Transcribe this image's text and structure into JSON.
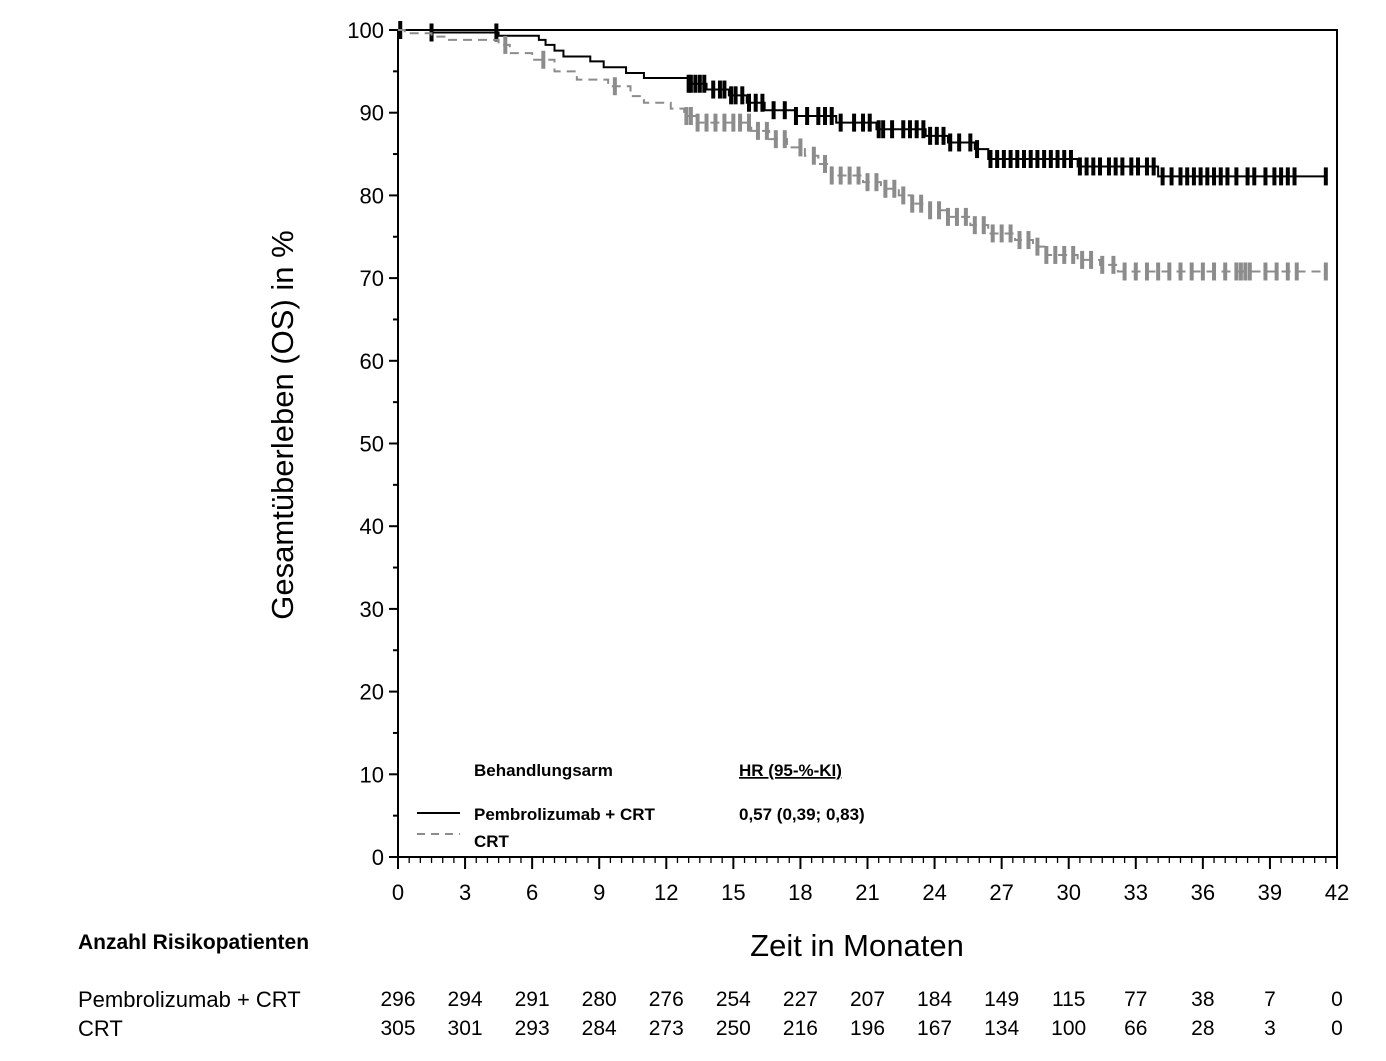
{
  "chart_data": {
    "type": "line",
    "subtype": "kaplan-meier",
    "title": "",
    "xlabel": "Zeit in Monaten",
    "ylabel": "Gesamtüberleben (OS) in %",
    "xlim": [
      0,
      42
    ],
    "ylim": [
      0,
      100
    ],
    "x_ticks": [
      0,
      3,
      6,
      9,
      12,
      15,
      18,
      21,
      24,
      27,
      30,
      33,
      36,
      39,
      42
    ],
    "x_tick_labels": [
      "0",
      "3",
      "6",
      "9",
      "12",
      "15",
      "18",
      "21",
      "24",
      "27",
      "30",
      "33",
      "36",
      "39",
      "42"
    ],
    "y_ticks": [
      0,
      10,
      20,
      30,
      40,
      50,
      60,
      70,
      80,
      90,
      100
    ],
    "y_tick_labels": [
      "0",
      "10",
      "20",
      "30",
      "40",
      "50",
      "60",
      "70",
      "80",
      "90",
      "100"
    ],
    "grid": false,
    "legend": {
      "position": "bottom-left",
      "header_arm": "Behandlungsarm",
      "header_hr": "HR (95-%-KI)",
      "hr_value": "0,57 (0,39; 0,83)"
    },
    "series": [
      {
        "name": "Pembrolizumab + CRT",
        "color": "#000000",
        "style": "solid",
        "steps": [
          [
            0,
            100
          ],
          [
            1.5,
            99.7
          ],
          [
            4.5,
            99.3
          ],
          [
            6.3,
            98.8
          ],
          [
            6.6,
            98.2
          ],
          [
            7.0,
            97.5
          ],
          [
            7.4,
            96.8
          ],
          [
            8.6,
            96.2
          ],
          [
            9.2,
            95.5
          ],
          [
            10.2,
            94.8
          ],
          [
            11.0,
            94.2
          ],
          [
            13.0,
            93.5
          ],
          [
            13.8,
            92.8
          ],
          [
            14.8,
            92.1
          ],
          [
            15.6,
            91.2
          ],
          [
            16.4,
            90.3
          ],
          [
            17.8,
            89.6
          ],
          [
            19.6,
            88.8
          ],
          [
            21.4,
            88.0
          ],
          [
            23.6,
            87.2
          ],
          [
            24.6,
            86.4
          ],
          [
            25.8,
            85.6
          ],
          [
            26.4,
            84.4
          ],
          [
            30.4,
            83.5
          ],
          [
            34.0,
            82.3
          ],
          [
            41.5,
            82.3
          ]
        ],
        "censor_times": [
          0.1,
          1.5,
          4.4,
          13.0,
          13.1,
          13.3,
          13.5,
          13.7,
          14.1,
          14.4,
          14.6,
          14.9,
          15.1,
          15.4,
          15.7,
          16.0,
          16.3,
          16.8,
          17.3,
          17.8,
          18.3,
          18.8,
          19.1,
          19.4,
          19.8,
          20.4,
          20.8,
          21.1,
          21.5,
          21.7,
          22.1,
          22.6,
          22.9,
          23.2,
          23.5,
          23.8,
          24.1,
          24.4,
          24.7,
          25.1,
          25.6,
          25.9,
          26.5,
          26.8,
          27.1,
          27.4,
          27.7,
          28.0,
          28.3,
          28.6,
          28.9,
          29.2,
          29.5,
          29.8,
          30.1,
          30.5,
          30.8,
          31.1,
          31.4,
          31.8,
          32.1,
          32.4,
          32.8,
          33.1,
          33.5,
          33.8,
          34.2,
          34.6,
          35.0,
          35.3,
          35.6,
          35.9,
          36.2,
          36.5,
          36.8,
          37.1,
          37.5,
          38.0,
          38.3,
          38.8,
          39.2,
          39.5,
          39.8,
          40.1,
          41.5
        ]
      },
      {
        "name": "CRT",
        "color": "#8c8c8c",
        "style": "dashed",
        "steps": [
          [
            0,
            100
          ],
          [
            0.3,
            99.6
          ],
          [
            1.5,
            99.2
          ],
          [
            2.2,
            98.8
          ],
          [
            4.5,
            98.2
          ],
          [
            5.0,
            97.2
          ],
          [
            6.0,
            96.4
          ],
          [
            7.0,
            95.0
          ],
          [
            8.0,
            94.0
          ],
          [
            9.4,
            93.2
          ],
          [
            10.4,
            92.0
          ],
          [
            11.0,
            91.2
          ],
          [
            12.2,
            90.5
          ],
          [
            12.8,
            89.6
          ],
          [
            13.4,
            88.8
          ],
          [
            15.8,
            87.8
          ],
          [
            16.6,
            86.8
          ],
          [
            17.4,
            85.8
          ],
          [
            18.2,
            84.8
          ],
          [
            18.8,
            83.8
          ],
          [
            19.4,
            82.4
          ],
          [
            20.8,
            81.6
          ],
          [
            21.6,
            80.8
          ],
          [
            22.4,
            80.0
          ],
          [
            23.0,
            79.0
          ],
          [
            23.8,
            78.2
          ],
          [
            24.6,
            77.4
          ],
          [
            25.6,
            76.4
          ],
          [
            26.4,
            75.4
          ],
          [
            27.6,
            74.6
          ],
          [
            28.4,
            73.8
          ],
          [
            29.0,
            72.8
          ],
          [
            30.4,
            72.2
          ],
          [
            31.4,
            71.6
          ],
          [
            32.2,
            70.8
          ],
          [
            41.5,
            70.8
          ]
        ],
        "censor_times": [
          4.8,
          6.5,
          9.7,
          12.9,
          13.1,
          13.4,
          13.8,
          14.2,
          14.6,
          15.0,
          15.3,
          15.7,
          16.1,
          16.5,
          16.9,
          17.3,
          18.0,
          18.6,
          19.1,
          19.4,
          19.8,
          20.2,
          20.6,
          21.0,
          21.4,
          21.8,
          22.2,
          22.6,
          23.0,
          23.4,
          23.8,
          24.2,
          24.6,
          25.0,
          25.4,
          25.8,
          26.2,
          26.6,
          27.0,
          27.4,
          27.8,
          28.2,
          28.6,
          29.0,
          29.4,
          29.8,
          30.2,
          30.6,
          31.0,
          31.5,
          32.0,
          32.5,
          33.0,
          33.5,
          34.0,
          34.5,
          35.0,
          35.5,
          36.0,
          36.5,
          37.0,
          37.5,
          37.7,
          37.9,
          38.1,
          38.8,
          39.3,
          39.8,
          40.2,
          41.5
        ]
      }
    ],
    "risk_table": {
      "title": "Anzahl Risikopatienten",
      "times": [
        0,
        3,
        6,
        9,
        12,
        15,
        18,
        21,
        24,
        27,
        30,
        33,
        36,
        39,
        42
      ],
      "rows": [
        {
          "label": "Pembrolizumab + CRT",
          "values": [
            "296",
            "294",
            "291",
            "280",
            "276",
            "254",
            "227",
            "207",
            "184",
            "149",
            "115",
            "77",
            "38",
            "7",
            "0"
          ]
        },
        {
          "label": "CRT",
          "values": [
            "305",
            "301",
            "293",
            "284",
            "273",
            "250",
            "216",
            "196",
            "167",
            "134",
            "100",
            "66",
            "28",
            "3",
            "0"
          ]
        }
      ]
    }
  }
}
